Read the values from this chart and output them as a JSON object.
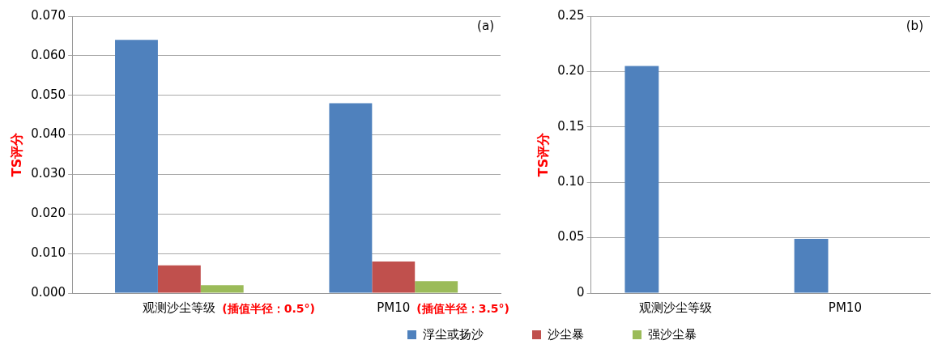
{
  "chart_data": [
    {
      "type": "bar",
      "title": "(a)",
      "ylabel": "TS评分",
      "categories": [
        "观测沙尘等级",
        "PM10"
      ],
      "series": [
        {
          "name": "浮尘或扬沙",
          "color": "#4f81bd",
          "values": [
            0.064,
            0.048
          ]
        },
        {
          "name": "沙尘暴",
          "color": "#c0504d",
          "values": [
            0.007,
            0.008
          ]
        },
        {
          "name": "强沙尘暴",
          "color": "#9bbb59",
          "values": [
            0.002,
            0.003
          ]
        }
      ],
      "annotations": [
        "(插值半径：0.5°)",
        "(插值半径：3.5°)"
      ],
      "ylim": [
        0,
        0.07
      ],
      "yticks": [
        {
          "value": 0,
          "label": "0.000"
        },
        {
          "value": 0.01,
          "label": "0.010"
        },
        {
          "value": 0.02,
          "label": "0.020"
        },
        {
          "value": 0.03,
          "label": "0.030"
        },
        {
          "value": 0.04,
          "label": "0.040"
        },
        {
          "value": 0.05,
          "label": "0.050"
        },
        {
          "value": 0.06,
          "label": "0.060"
        },
        {
          "value": 0.07,
          "label": "0.070"
        }
      ],
      "grid": "y",
      "legend": "bottom"
    },
    {
      "type": "bar",
      "title": "(b)",
      "ylabel": "TS评分",
      "categories": [
        "观测沙尘等级",
        "PM10"
      ],
      "series": [
        {
          "color": "#4f81bd",
          "values": [
            0.205,
            0.049
          ]
        },
        {
          "color": "#c0504d",
          "values": [
            0,
            0
          ]
        },
        {
          "color": "#9bbb59",
          "values": [
            0,
            0
          ]
        }
      ],
      "ylim": [
        0,
        0.25
      ],
      "yticks": [
        0,
        0.05,
        {
          "value": 0.1,
          "label": "0.10"
        },
        {
          "value": 0.15,
          "label": "0.15"
        },
        {
          "value": 0.2,
          "label": "0.20"
        },
        {
          "value": 0.25,
          "label": "0.25"
        }
      ],
      "grid": "y"
    }
  ]
}
